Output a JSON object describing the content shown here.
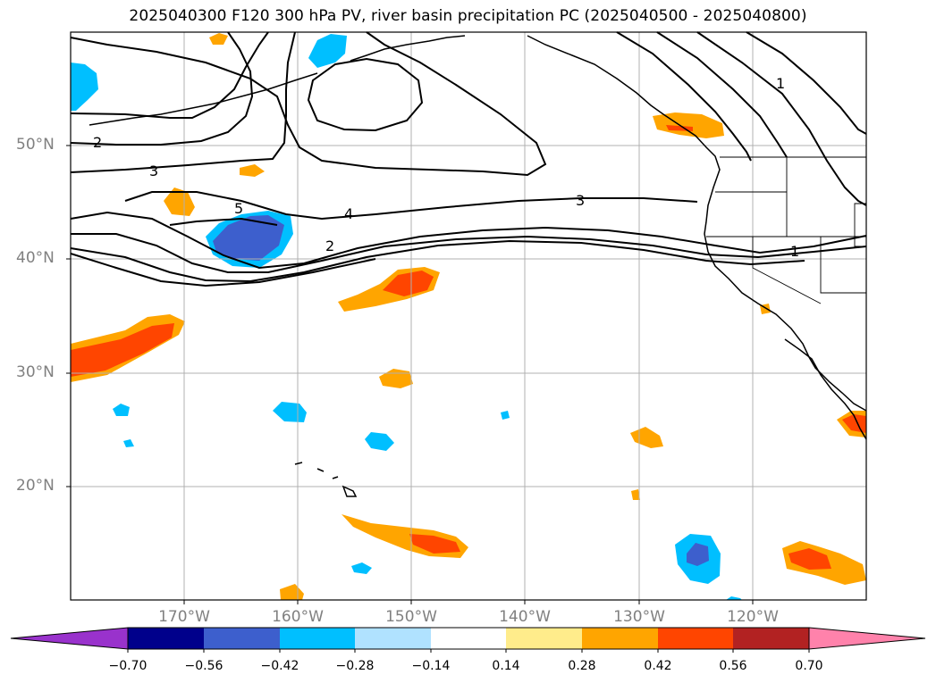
{
  "title": "2025040300 F120 300 hPa PV, river basin precipitation PC (2025040500 - 2025040800)",
  "map": {
    "lat_labels": [
      "50°N",
      "40°N",
      "30°N",
      "20°N"
    ],
    "lon_labels": [
      "170°W",
      "160°W",
      "150°W",
      "140°W",
      "130°W",
      "120°W"
    ],
    "contour_labels": [
      "1",
      "1",
      "2",
      "2",
      "3",
      "3",
      "4",
      "5"
    ],
    "extent": {
      "lon": [
        -180,
        -110
      ],
      "lat": [
        10,
        60
      ]
    },
    "grid": true
  },
  "colorbar": {
    "ticks": [
      "−0.70",
      "−0.56",
      "−0.42",
      "−0.28",
      "−0.14",
      "0.14",
      "0.28",
      "0.42",
      "0.56",
      "0.70"
    ],
    "colors": [
      "#9932cc",
      "#00008b",
      "#3d5fcd",
      "#00bfff",
      "#b0e2ff",
      "#ffffff",
      "#ffec8b",
      "#ffa500",
      "#ff4500",
      "#b22222",
      "#ff82ab"
    ]
  }
}
